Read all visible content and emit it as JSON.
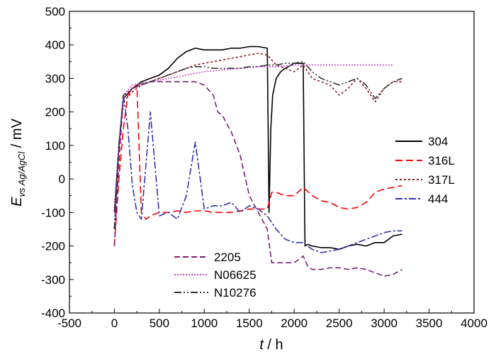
{
  "chart_data": {
    "type": "line",
    "xlabel_italic": "t",
    "xlabel_unit": " / h",
    "ylabel_italic": "E",
    "ylabel_sub": "vs Ag/AgCl",
    "ylabel_unit": " / mV",
    "xlim": [
      -500,
      4000
    ],
    "ylim": [
      -400,
      500
    ],
    "xticks": [
      -500,
      0,
      500,
      1000,
      1500,
      2000,
      2500,
      3000,
      3500,
      4000
    ],
    "yticks": [
      -400,
      -300,
      -200,
      -100,
      0,
      100,
      200,
      300,
      400,
      500
    ],
    "grid": false,
    "legend_placement": "right and lower-center",
    "series": [
      {
        "name": "304",
        "color": "#000000",
        "dash": "solid",
        "x": [
          0,
          50,
          100,
          200,
          300,
          400,
          500,
          600,
          700,
          800,
          900,
          1000,
          1100,
          1200,
          1300,
          1400,
          1500,
          1600,
          1700,
          1720,
          1740,
          1760,
          1800,
          1850,
          1900,
          2000,
          2050,
          2100,
          2120,
          2150,
          2200,
          2300,
          2400,
          2500,
          2600,
          2700,
          2800,
          2900,
          3000,
          3100,
          3200
        ],
        "y": [
          -100,
          100,
          240,
          270,
          290,
          300,
          310,
          330,
          360,
          380,
          390,
          385,
          385,
          385,
          390,
          390,
          395,
          395,
          390,
          -100,
          150,
          250,
          300,
          320,
          330,
          345,
          345,
          345,
          -200,
          -195,
          -200,
          -205,
          -205,
          -210,
          -200,
          -195,
          -200,
          -190,
          -190,
          -170,
          -165
        ]
      },
      {
        "name": "316L",
        "color": "#ff0000",
        "dash": "10,5",
        "x": [
          0,
          50,
          100,
          150,
          200,
          250,
          300,
          350,
          400,
          500,
          600,
          700,
          800,
          900,
          1000,
          1100,
          1200,
          1300,
          1400,
          1500,
          1600,
          1700,
          1750,
          1800,
          1900,
          2000,
          2100,
          2200,
          2300,
          2400,
          2500,
          2600,
          2700,
          2800,
          2900,
          3000,
          3100,
          3200
        ],
        "y": [
          -200,
          0,
          150,
          250,
          270,
          280,
          -100,
          -120,
          -110,
          -100,
          -100,
          -95,
          -100,
          -95,
          -95,
          -100,
          -100,
          -100,
          -95,
          -90,
          -90,
          -90,
          -40,
          -40,
          -50,
          -50,
          -25,
          -50,
          -65,
          -70,
          -85,
          -90,
          -85,
          -70,
          -40,
          -30,
          -25,
          -20
        ]
      },
      {
        "name": "317L",
        "color": "#8b1a1a",
        "dash": "3,3",
        "x": [
          0,
          50,
          100,
          200,
          300,
          400,
          500,
          600,
          700,
          800,
          900,
          1000,
          1100,
          1200,
          1300,
          1400,
          1500,
          1600,
          1700,
          1800,
          1900,
          2000,
          2100,
          2200,
          2300,
          2400,
          2500,
          2600,
          2700,
          2800,
          2900,
          3000,
          3100,
          3200
        ],
        "y": [
          -150,
          80,
          230,
          260,
          280,
          290,
          300,
          310,
          320,
          330,
          340,
          345,
          350,
          355,
          360,
          365,
          370,
          375,
          370,
          340,
          330,
          320,
          340,
          300,
          290,
          280,
          250,
          270,
          300,
          270,
          230,
          270,
          290,
          290
        ]
      },
      {
        "name": "444",
        "color": "#3333aa",
        "dash": "10,3,3,3",
        "x": [
          0,
          50,
          100,
          150,
          200,
          250,
          300,
          400,
          500,
          600,
          700,
          800,
          900,
          1000,
          1100,
          1200,
          1300,
          1400,
          1500,
          1600,
          1700,
          1800,
          1900,
          2000,
          2100,
          2200,
          2300,
          2400,
          2500,
          2600,
          2700,
          2800,
          2900,
          3000,
          3100,
          3200
        ],
        "y": [
          -150,
          100,
          250,
          150,
          -20,
          -100,
          -120,
          200,
          -110,
          -100,
          -120,
          -50,
          110,
          -90,
          -80,
          -80,
          -70,
          -100,
          -80,
          -90,
          -110,
          -150,
          -180,
          -190,
          -190,
          -210,
          -220,
          -215,
          -210,
          -200,
          -190,
          -180,
          -170,
          -160,
          -155,
          -155
        ]
      },
      {
        "name": "2205",
        "color": "#7a1f7a",
        "dash": "8,4",
        "x": [
          0,
          50,
          100,
          200,
          300,
          400,
          500,
          600,
          700,
          800,
          900,
          1000,
          1100,
          1150,
          1200,
          1300,
          1400,
          1500,
          1600,
          1700,
          1750,
          1800,
          1900,
          2000,
          2100,
          2150,
          2200,
          2300,
          2400,
          2500,
          2600,
          2700,
          2800,
          2900,
          3000,
          3100,
          3200
        ],
        "y": [
          -200,
          50,
          240,
          270,
          280,
          290,
          290,
          290,
          290,
          290,
          290,
          280,
          250,
          200,
          190,
          140,
          70,
          -50,
          -100,
          -150,
          -250,
          -250,
          -250,
          -250,
          -230,
          -260,
          -270,
          -270,
          -265,
          -265,
          -270,
          -265,
          -270,
          -280,
          -290,
          -285,
          -270
        ]
      },
      {
        "name": "N06625",
        "color": "#cc44cc",
        "dash": "2,2",
        "x": [
          0,
          50,
          100,
          200,
          300,
          400,
          500,
          600,
          700,
          800,
          900,
          1000,
          1200,
          1400,
          1600,
          1800,
          2000,
          2200,
          2400,
          2600,
          2800,
          3000,
          3100
        ],
        "y": [
          -100,
          100,
          250,
          280,
          285,
          290,
          295,
          300,
          305,
          310,
          315,
          320,
          325,
          330,
          335,
          335,
          340,
          340,
          340,
          340,
          340,
          340,
          340
        ]
      },
      {
        "name": "N10276",
        "color": "#333333",
        "dash": "10,3,2,3,2,3",
        "x": [
          0,
          50,
          100,
          200,
          300,
          400,
          500,
          600,
          700,
          800,
          900,
          1000,
          1100,
          1200,
          1300,
          1400,
          1500,
          1600,
          1700,
          1800,
          1900,
          2000,
          2100,
          2200,
          2300,
          2400,
          2500,
          2600,
          2700,
          2800,
          2900,
          3000,
          3100,
          3200
        ],
        "y": [
          -150,
          100,
          250,
          270,
          285,
          290,
          300,
          310,
          320,
          330,
          335,
          335,
          330,
          330,
          330,
          330,
          335,
          335,
          340,
          340,
          345,
          345,
          350,
          320,
          300,
          290,
          280,
          290,
          300,
          280,
          240,
          270,
          290,
          300
        ]
      }
    ],
    "legends": [
      {
        "placement": "right",
        "entries": [
          "304",
          "316L",
          "317L",
          "444"
        ]
      },
      {
        "placement": "lower-center",
        "entries": [
          "2205",
          "N06625",
          "N10276"
        ]
      }
    ]
  }
}
